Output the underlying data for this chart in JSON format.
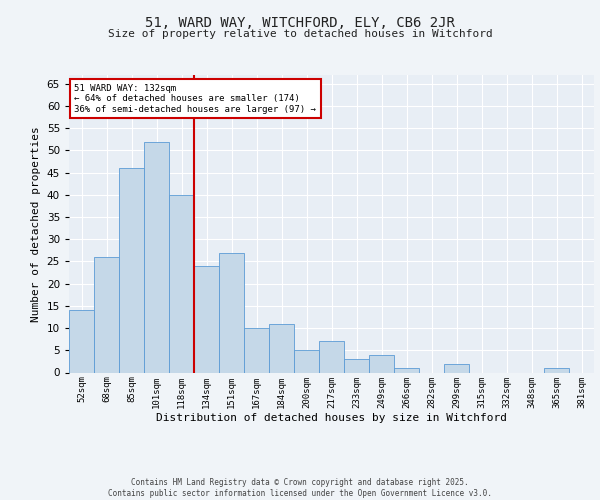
{
  "title1": "51, WARD WAY, WITCHFORD, ELY, CB6 2JR",
  "title2": "Size of property relative to detached houses in Witchford",
  "xlabel": "Distribution of detached houses by size in Witchford",
  "ylabel": "Number of detached properties",
  "categories": [
    "52sqm",
    "68sqm",
    "85sqm",
    "101sqm",
    "118sqm",
    "134sqm",
    "151sqm",
    "167sqm",
    "184sqm",
    "200sqm",
    "217sqm",
    "233sqm",
    "249sqm",
    "266sqm",
    "282sqm",
    "299sqm",
    "315sqm",
    "332sqm",
    "348sqm",
    "365sqm",
    "381sqm"
  ],
  "values": [
    14,
    26,
    46,
    52,
    40,
    24,
    27,
    10,
    11,
    5,
    7,
    3,
    4,
    1,
    0,
    2,
    0,
    0,
    0,
    1,
    0
  ],
  "bar_color": "#c5d8e8",
  "bar_edge_color": "#5b9bd5",
  "vline_x": 5,
  "vline_color": "#cc0000",
  "annotation_text": "51 WARD WAY: 132sqm\n← 64% of detached houses are smaller (174)\n36% of semi-detached houses are larger (97) →",
  "annotation_box_color": "#cc0000",
  "ylim": [
    0,
    67
  ],
  "yticks": [
    0,
    5,
    10,
    15,
    20,
    25,
    30,
    35,
    40,
    45,
    50,
    55,
    60,
    65
  ],
  "bg_color": "#e8eef5",
  "grid_color": "#ffffff",
  "footer": "Contains HM Land Registry data © Crown copyright and database right 2025.\nContains public sector information licensed under the Open Government Licence v3.0.",
  "fig_bg": "#f0f4f8"
}
